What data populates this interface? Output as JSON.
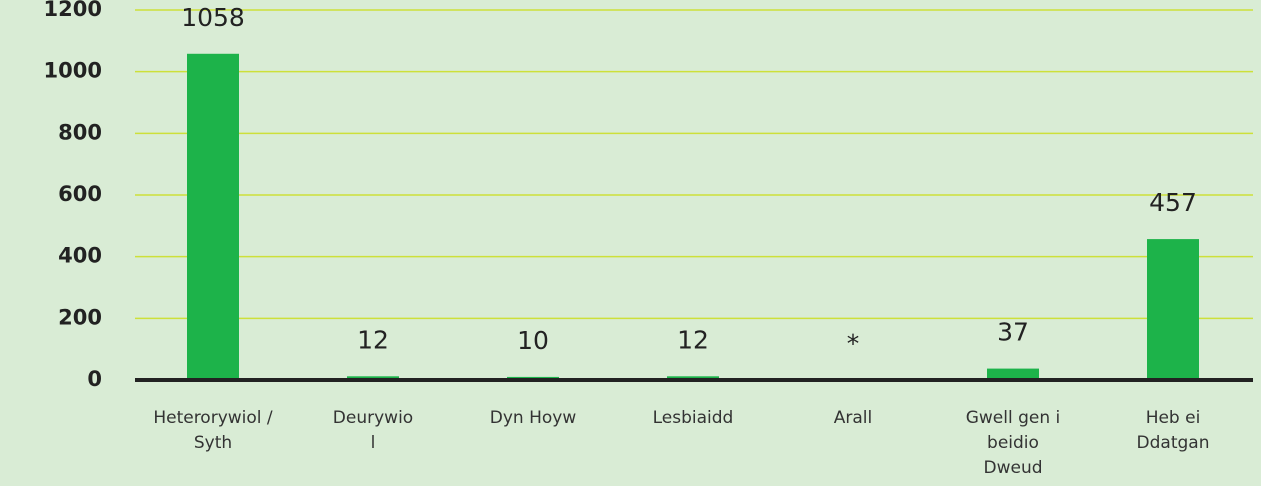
{
  "chart_data": {
    "type": "bar",
    "categories": [
      "Heterorywiol /\nSyth",
      "Deurywio\nl",
      "Dyn Hoyw",
      "Lesbiaidd",
      "Arall",
      "Gwell gen i\nbeidio\nDweud",
      "Heb ei\nDdatgan"
    ],
    "values": [
      1058,
      12,
      10,
      12,
      null,
      37,
      457
    ],
    "value_labels": [
      "1058",
      "12",
      "10",
      "12",
      "*",
      "37",
      "457"
    ],
    "color": "#1db34a",
    "ylim": [
      0,
      1200
    ],
    "yticks": [
      0,
      200,
      400,
      600,
      800,
      1000,
      1200
    ],
    "grid": true
  }
}
